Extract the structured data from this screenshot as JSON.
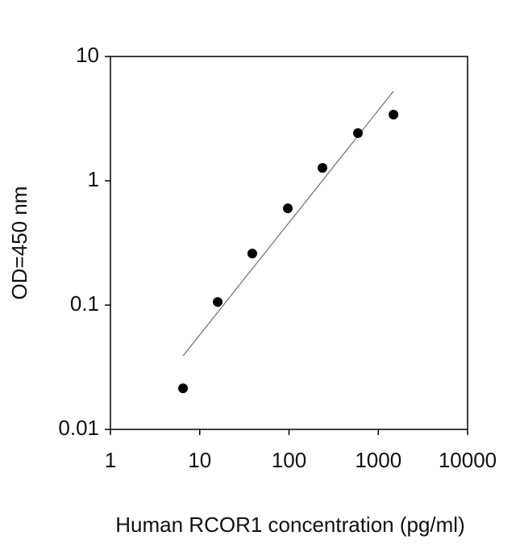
{
  "chart_data": {
    "type": "scatter",
    "xlabel": "Human RCOR1 concentration (pg/ml)",
    "ylabel": "OD=450 nm",
    "xscale": "log",
    "yscale": "log",
    "xlim": [
      1,
      10000
    ],
    "ylim": [
      0.01,
      10
    ],
    "xticks": [
      1,
      10,
      100,
      1000,
      10000
    ],
    "yticks": [
      0.01,
      0.1,
      1,
      10
    ],
    "series": [
      {
        "color": "#000000",
        "x": [
          6.5,
          15.9,
          38.8,
          97,
          237,
          592,
          1480
        ],
        "values": [
          0.0214,
          0.106,
          0.26,
          0.6,
          1.27,
          2.42,
          3.41
        ]
      }
    ],
    "fit_line": {
      "color": "#555555",
      "x": [
        6.5,
        1480
      ],
      "values": [
        0.039,
        5.26
      ]
    }
  }
}
